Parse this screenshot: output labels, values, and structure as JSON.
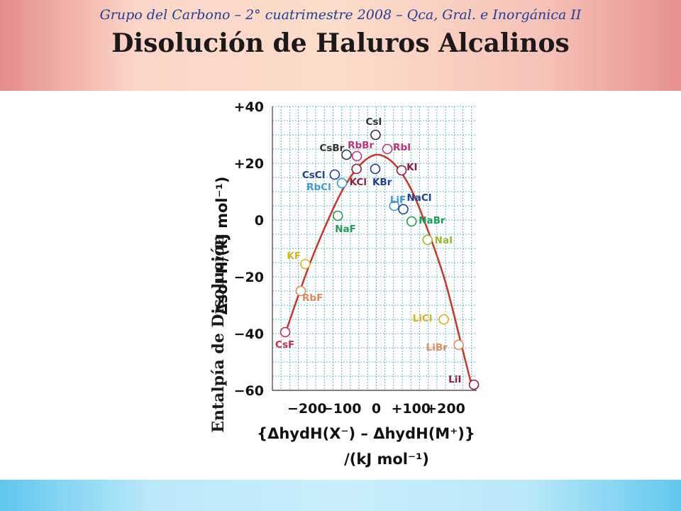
{
  "slide": {
    "title": "Disolución de Haluros Alcalinos",
    "footer": "Grupo del Carbono – 2° cuatrimestre 2008 – Qca, Gral. e Inorgánica II",
    "overlay_ylabel": "Entalpía de Disolución"
  },
  "chart_data": {
    "type": "scatter",
    "ylabel": "Δsol H/(kJ mol⁻¹)",
    "xlabel": "{ΔhydH(X⁻) – ΔhydH(M⁺)}",
    "xlabel_units": "/(kJ mol⁻¹)",
    "xlim": [
      -300,
      290
    ],
    "ylim": [
      -60,
      40
    ],
    "xticks": [
      {
        "value": -200,
        "label": "−200"
      },
      {
        "value": -100,
        "label": "−100"
      },
      {
        "value": 0,
        "label": "0"
      },
      {
        "value": 100,
        "label": "+100"
      },
      {
        "value": 200,
        "label": "+200"
      }
    ],
    "yticks": [
      {
        "value": 40,
        "label": "+40"
      },
      {
        "value": 20,
        "label": "+20"
      },
      {
        "value": 0,
        "label": "0"
      },
      {
        "value": -20,
        "label": "−20"
      },
      {
        "value": -40,
        "label": "−40"
      },
      {
        "value": -60,
        "label": "−60"
      }
    ],
    "grid": true,
    "colors": {
      "grid": "#5fb7c4",
      "curve": "#c9342b",
      "axis": "#333333"
    },
    "curve": [
      {
        "x": -263,
        "y": -40
      },
      {
        "x": -200,
        "y": -18
      },
      {
        "x": -150,
        "y": -3
      },
      {
        "x": -100,
        "y": 10
      },
      {
        "x": -50,
        "y": 19
      },
      {
        "x": 0,
        "y": 23
      },
      {
        "x": 50,
        "y": 20
      },
      {
        "x": 100,
        "y": 11
      },
      {
        "x": 150,
        "y": -4
      },
      {
        "x": 200,
        "y": -22
      },
      {
        "x": 250,
        "y": -46
      },
      {
        "x": 275,
        "y": -58
      }
    ],
    "points": [
      {
        "label": "CsF",
        "x": -263,
        "y": -39.5,
        "color": "#c0304a"
      },
      {
        "label": "KF",
        "x": -205,
        "y": -15.5,
        "color": "#d4b21c"
      },
      {
        "label": "RbF",
        "x": -218,
        "y": -25,
        "color": "#e08a5c"
      },
      {
        "label": "NaF",
        "x": -111,
        "y": 1.5,
        "color": "#1f9a5c"
      },
      {
        "label": "CsCl",
        "x": -120,
        "y": 16,
        "color": "#1f3f94"
      },
      {
        "label": "RbCl",
        "x": -99,
        "y": 13,
        "color": "#3a9ad6"
      },
      {
        "label": "CsBr",
        "x": -86,
        "y": 23,
        "color": "#333333"
      },
      {
        "label": "RbBr",
        "x": -56,
        "y": 22.5,
        "color": "#c4307a"
      },
      {
        "label": "KCl",
        "x": -57,
        "y": 18,
        "color": "#8a1f3f"
      },
      {
        "label": "CsI",
        "x": -2,
        "y": 30,
        "color": "#333333"
      },
      {
        "label": "KBr",
        "x": -3,
        "y": 18,
        "color": "#1f3f94"
      },
      {
        "label": "RbI",
        "x": 32,
        "y": 25,
        "color": "#c4307a"
      },
      {
        "label": "KI",
        "x": 73,
        "y": 17.5,
        "color": "#8a1f3f"
      },
      {
        "label": "LiF",
        "x": 52,
        "y": 5,
        "color": "#3a9ad6"
      },
      {
        "label": "NaCl",
        "x": 78,
        "y": 3.8,
        "color": "#1f3f94"
      },
      {
        "label": "NaBr",
        "x": 102,
        "y": -0.5,
        "color": "#1f9a5c"
      },
      {
        "label": "NaI",
        "x": 148,
        "y": -7,
        "color": "#9ab82a"
      },
      {
        "label": "LiCl",
        "x": 195,
        "y": -35,
        "color": "#d4b21c"
      },
      {
        "label": "LiBr",
        "x": 238,
        "y": -44,
        "color": "#e08a5c"
      },
      {
        "label": "LiI",
        "x": 282,
        "y": -58,
        "color": "#8a1f3f"
      }
    ]
  }
}
